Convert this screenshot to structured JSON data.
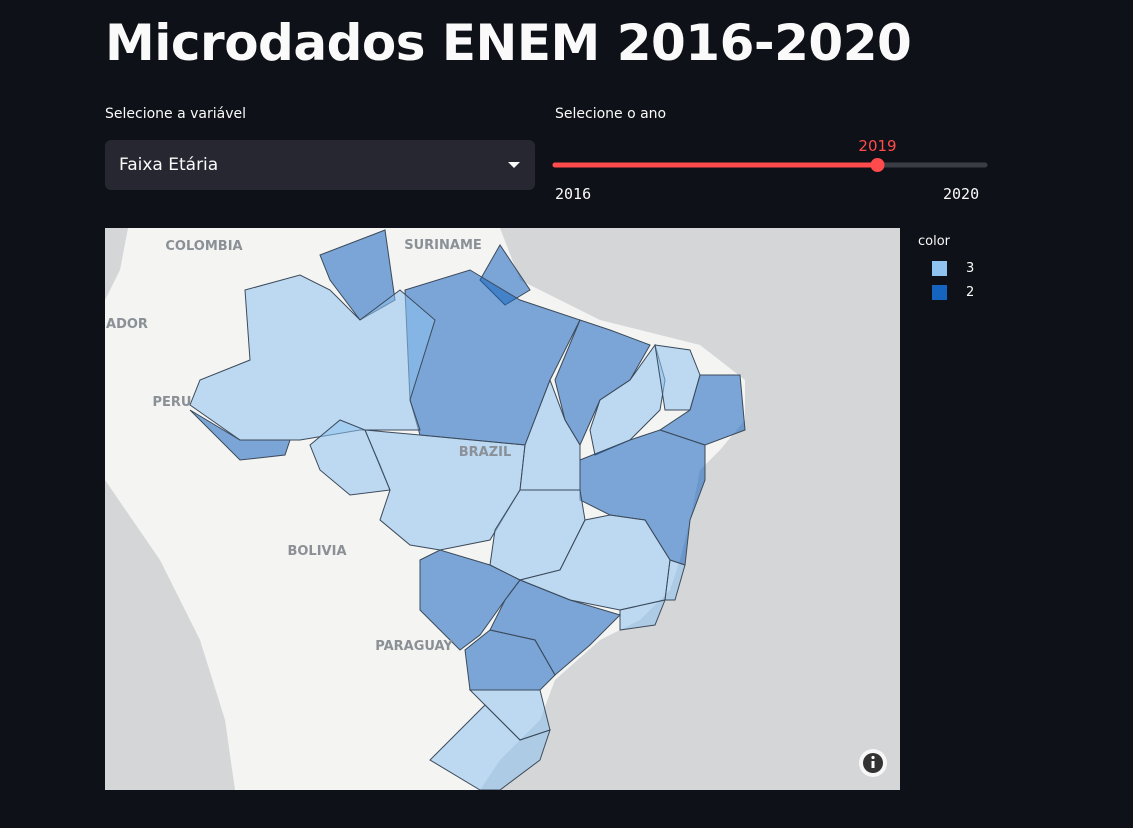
{
  "header": {
    "title": "Microdados ENEM 2016-2020"
  },
  "variable_select": {
    "label": "Selecione a variável",
    "value": "Faixa Etária"
  },
  "year_slider": {
    "label": "Selecione o ano",
    "min": 2016,
    "max": 2020,
    "value": 2019
  },
  "map": {
    "place_labels": [
      "COLOMBIA",
      "SURINAME",
      "ADOR",
      "PERU",
      "BRAZIL",
      "BOLIVIA",
      "PARAGUAY"
    ],
    "legend": {
      "title": "color",
      "items": [
        {
          "name": "3",
          "color": "#8ec3f0"
        },
        {
          "name": "2",
          "color": "#1565c0"
        }
      ]
    }
  }
}
